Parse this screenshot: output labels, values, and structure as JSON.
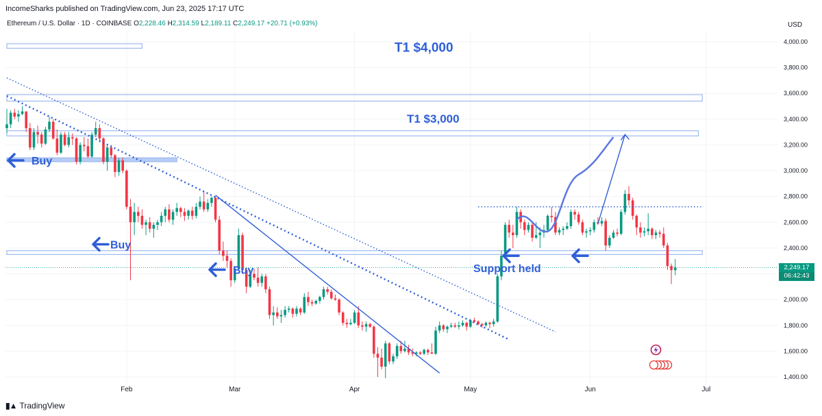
{
  "header": {
    "published": "IncomeSharks published on TradingView.com, Jun 23, 2025 17:17 UTC",
    "symbol": "Ethereum / U.S. Dollar · 1D · COINBASE",
    "o_label": "O",
    "o": "2,228.46",
    "h_label": "H",
    "h": "2,314.59",
    "l_label": "L",
    "l": "2,189.11",
    "c_label": "C",
    "c": "2,249.17",
    "change": "+20.71 (+0.93%)"
  },
  "currency": "USD",
  "last_price": {
    "price": "2,249.17",
    "countdown": "06:42:43"
  },
  "footer": {
    "brand": "TradingView"
  },
  "colors": {
    "up": "#089981",
    "down": "#f23645",
    "annotation": "#2f5fd7",
    "zone": "#9db8ef"
  },
  "chart_data": {
    "type": "candlestick",
    "y_ticks": [
      "4,000.00",
      "3,800.00",
      "3,600.00",
      "3,400.00",
      "3,200.00",
      "3,000.00",
      "2,800.00",
      "2,600.00",
      "2,400.00",
      "2,200.00",
      "2,000.00",
      "1,800.00",
      "1,600.00",
      "1,400.00"
    ],
    "y_tick_values": [
      4000,
      3800,
      3600,
      3400,
      3200,
      3000,
      2800,
      2600,
      2400,
      2200,
      2000,
      1800,
      1600,
      1400
    ],
    "x_ticks": [
      {
        "label": "Feb",
        "date": "2025-02-01"
      },
      {
        "label": "Mar",
        "date": "2025-03-01"
      },
      {
        "label": "Apr",
        "date": "2025-04-01"
      },
      {
        "label": "May",
        "date": "2025-05-01"
      },
      {
        "label": "Jun",
        "date": "2025-06-01"
      },
      {
        "label": "Jul",
        "date": "2025-07-01"
      }
    ],
    "date_range": [
      "2025-01-01",
      "2025-06-23"
    ],
    "ylim": [
      1350,
      4120
    ],
    "annotations": {
      "target1": "T1 $4,000",
      "target2": "T1 $3,000",
      "buy1": "Buy",
      "buy2": "Buy",
      "buy3": "Buy",
      "support": "Support held"
    },
    "zones": [
      {
        "low": 3950,
        "high": 3985,
        "from": "2025-01-01",
        "to": "2025-02-05"
      },
      {
        "low": 3540,
        "high": 3590,
        "from": "2025-01-01",
        "to": "2025-06-30"
      },
      {
        "low": 3270,
        "high": 3310,
        "from": "2025-01-01",
        "to": "2025-06-29"
      },
      {
        "low": 2350,
        "high": 2380,
        "from": "2025-01-01",
        "to": "2025-06-30"
      },
      {
        "low": 3070,
        "high": 3100,
        "from": "2025-01-01",
        "to": "2025-02-14"
      }
    ],
    "candles": [
      [
        "2025-01-01",
        3330,
        3480,
        3290,
        3360
      ],
      [
        "2025-01-02",
        3360,
        3470,
        3330,
        3450
      ],
      [
        "2025-01-03",
        3450,
        3480,
        3400,
        3420
      ],
      [
        "2025-01-04",
        3420,
        3470,
        3380,
        3440
      ],
      [
        "2025-01-05",
        3440,
        3500,
        3430,
        3460
      ],
      [
        "2025-01-06",
        3460,
        3460,
        3300,
        3330
      ],
      [
        "2025-01-07",
        3330,
        3370,
        3160,
        3180
      ],
      [
        "2025-01-08",
        3180,
        3330,
        3160,
        3300
      ],
      [
        "2025-01-09",
        3300,
        3350,
        3210,
        3280
      ],
      [
        "2025-01-10",
        3280,
        3300,
        3180,
        3210
      ],
      [
        "2025-01-11",
        3210,
        3340,
        3200,
        3320
      ],
      [
        "2025-01-12",
        3320,
        3420,
        3300,
        3380
      ],
      [
        "2025-01-13",
        3380,
        3400,
        3240,
        3250
      ],
      [
        "2025-01-14",
        3250,
        3320,
        3120,
        3140
      ],
      [
        "2025-01-15",
        3140,
        3300,
        3130,
        3280
      ],
      [
        "2025-01-16",
        3280,
        3300,
        3190,
        3200
      ],
      [
        "2025-01-17",
        3200,
        3300,
        3180,
        3260
      ],
      [
        "2025-01-18",
        3260,
        3290,
        3200,
        3250
      ],
      [
        "2025-01-19",
        3250,
        3260,
        3050,
        3070
      ],
      [
        "2025-01-20",
        3070,
        3220,
        3050,
        3200
      ],
      [
        "2025-01-21",
        3200,
        3260,
        3150,
        3190
      ],
      [
        "2025-01-22",
        3190,
        3250,
        3100,
        3110
      ],
      [
        "2025-01-23",
        3110,
        3300,
        3100,
        3280
      ],
      [
        "2025-01-24",
        3280,
        3380,
        3260,
        3330
      ],
      [
        "2025-01-25",
        3330,
        3360,
        3220,
        3250
      ],
      [
        "2025-01-26",
        3250,
        3260,
        3050,
        3070
      ],
      [
        "2025-01-27",
        3070,
        3200,
        3000,
        3180
      ],
      [
        "2025-01-28",
        3180,
        3200,
        3100,
        3120
      ],
      [
        "2025-01-29",
        3120,
        3130,
        2950,
        2990
      ],
      [
        "2025-01-30",
        2990,
        3100,
        2960,
        3080
      ],
      [
        "2025-01-31",
        3080,
        3100,
        2980,
        3000
      ],
      [
        "2025-02-01",
        3000,
        3010,
        2700,
        2720
      ],
      [
        "2025-02-02",
        2720,
        2780,
        2150,
        2600
      ],
      [
        "2025-02-03",
        2600,
        2750,
        2500,
        2680
      ],
      [
        "2025-02-04",
        2680,
        2720,
        2600,
        2650
      ],
      [
        "2025-02-05",
        2650,
        2700,
        2550,
        2580
      ],
      [
        "2025-02-06",
        2580,
        2620,
        2500,
        2600
      ],
      [
        "2025-02-07",
        2600,
        2640,
        2520,
        2550
      ],
      [
        "2025-02-08",
        2550,
        2600,
        2480,
        2580
      ],
      [
        "2025-02-09",
        2580,
        2620,
        2540,
        2600
      ],
      [
        "2025-02-10",
        2600,
        2680,
        2570,
        2650
      ],
      [
        "2025-02-11",
        2650,
        2720,
        2600,
        2700
      ],
      [
        "2025-02-12",
        2700,
        2740,
        2600,
        2620
      ],
      [
        "2025-02-13",
        2620,
        2700,
        2580,
        2680
      ],
      [
        "2025-02-14",
        2680,
        2750,
        2650,
        2710
      ],
      [
        "2025-02-15",
        2710,
        2720,
        2640,
        2680
      ],
      [
        "2025-02-16",
        2680,
        2710,
        2610,
        2650
      ],
      [
        "2025-02-17",
        2650,
        2700,
        2620,
        2690
      ],
      [
        "2025-02-18",
        2690,
        2720,
        2620,
        2650
      ],
      [
        "2025-02-19",
        2650,
        2750,
        2630,
        2720
      ],
      [
        "2025-02-20",
        2720,
        2800,
        2700,
        2760
      ],
      [
        "2025-02-21",
        2760,
        2840,
        2680,
        2700
      ],
      [
        "2025-02-22",
        2700,
        2780,
        2680,
        2750
      ],
      [
        "2025-02-23",
        2750,
        2800,
        2720,
        2790
      ],
      [
        "2025-02-24",
        2790,
        2800,
        2600,
        2620
      ],
      [
        "2025-02-25",
        2620,
        2650,
        2350,
        2380
      ],
      [
        "2025-02-26",
        2380,
        2450,
        2300,
        2340
      ],
      [
        "2025-02-27",
        2340,
        2380,
        2250,
        2300
      ],
      [
        "2025-02-28",
        2300,
        2320,
        2100,
        2150
      ],
      [
        "2025-03-01",
        2150,
        2250,
        2130,
        2240
      ],
      [
        "2025-03-02",
        2240,
        2550,
        2230,
        2500
      ],
      [
        "2025-03-03",
        2500,
        2520,
        2200,
        2230
      ],
      [
        "2025-03-04",
        2230,
        2250,
        2050,
        2100
      ],
      [
        "2025-03-05",
        2100,
        2230,
        2090,
        2200
      ],
      [
        "2025-03-06",
        2200,
        2240,
        2150,
        2170
      ],
      [
        "2025-03-07",
        2170,
        2250,
        2100,
        2130
      ],
      [
        "2025-03-08",
        2130,
        2200,
        2100,
        2180
      ],
      [
        "2025-03-09",
        2180,
        2200,
        2050,
        2080
      ],
      [
        "2025-03-10",
        2080,
        2100,
        1850,
        1880
      ],
      [
        "2025-03-11",
        1880,
        1950,
        1800,
        1900
      ],
      [
        "2025-03-12",
        1900,
        1940,
        1850,
        1870
      ],
      [
        "2025-03-13",
        1870,
        1920,
        1820,
        1880
      ],
      [
        "2025-03-14",
        1880,
        1950,
        1860,
        1920
      ],
      [
        "2025-03-15",
        1920,
        1950,
        1900,
        1930
      ],
      [
        "2025-03-16",
        1930,
        1940,
        1860,
        1890
      ],
      [
        "2025-03-17",
        1890,
        1950,
        1870,
        1930
      ],
      [
        "2025-03-18",
        1930,
        1940,
        1880,
        1900
      ],
      [
        "2025-03-19",
        1900,
        2050,
        1890,
        2020
      ],
      [
        "2025-03-20",
        2020,
        2060,
        1950,
        1980
      ],
      [
        "2025-03-21",
        1980,
        2000,
        1950,
        1970
      ],
      [
        "2025-03-22",
        1970,
        2000,
        1960,
        1990
      ],
      [
        "2025-03-23",
        1990,
        2030,
        1970,
        2020
      ],
      [
        "2025-03-24",
        2020,
        2100,
        2000,
        2080
      ],
      [
        "2025-03-25",
        2080,
        2100,
        2040,
        2060
      ],
      [
        "2025-03-26",
        2060,
        2080,
        2000,
        2010
      ],
      [
        "2025-03-27",
        2010,
        2040,
        1990,
        2000
      ],
      [
        "2025-03-28",
        2000,
        2010,
        1880,
        1900
      ],
      [
        "2025-03-29",
        1900,
        1910,
        1800,
        1820
      ],
      [
        "2025-03-30",
        1820,
        1850,
        1780,
        1810
      ],
      [
        "2025-03-31",
        1810,
        1850,
        1800,
        1820
      ],
      [
        "2025-04-01",
        1820,
        1920,
        1810,
        1900
      ],
      [
        "2025-04-02",
        1900,
        1950,
        1780,
        1800
      ],
      [
        "2025-04-03",
        1800,
        1830,
        1760,
        1790
      ],
      [
        "2025-04-04",
        1790,
        1830,
        1750,
        1810
      ],
      [
        "2025-04-05",
        1810,
        1820,
        1780,
        1790
      ],
      [
        "2025-04-06",
        1790,
        1800,
        1550,
        1580
      ],
      [
        "2025-04-07",
        1580,
        1630,
        1400,
        1550
      ],
      [
        "2025-04-08",
        1550,
        1620,
        1460,
        1480
      ],
      [
        "2025-04-09",
        1480,
        1680,
        1390,
        1660
      ],
      [
        "2025-04-10",
        1660,
        1670,
        1500,
        1520
      ],
      [
        "2025-04-11",
        1520,
        1580,
        1500,
        1560
      ],
      [
        "2025-04-12",
        1560,
        1660,
        1540,
        1640
      ],
      [
        "2025-04-13",
        1640,
        1680,
        1580,
        1600
      ],
      [
        "2025-04-14",
        1600,
        1680,
        1590,
        1620
      ],
      [
        "2025-04-15",
        1620,
        1650,
        1570,
        1590
      ],
      [
        "2025-04-16",
        1590,
        1620,
        1560,
        1580
      ],
      [
        "2025-04-17",
        1580,
        1600,
        1560,
        1590
      ],
      [
        "2025-04-18",
        1590,
        1600,
        1570,
        1580
      ],
      [
        "2025-04-19",
        1580,
        1620,
        1570,
        1610
      ],
      [
        "2025-04-20",
        1610,
        1620,
        1570,
        1590
      ],
      [
        "2025-04-21",
        1590,
        1660,
        1580,
        1580
      ],
      [
        "2025-04-22",
        1580,
        1790,
        1570,
        1760
      ],
      [
        "2025-04-23",
        1760,
        1830,
        1740,
        1800
      ],
      [
        "2025-04-24",
        1800,
        1810,
        1750,
        1770
      ],
      [
        "2025-04-25",
        1770,
        1800,
        1740,
        1790
      ],
      [
        "2025-04-26",
        1790,
        1820,
        1780,
        1800
      ],
      [
        "2025-04-27",
        1800,
        1820,
        1780,
        1790
      ],
      [
        "2025-04-28",
        1790,
        1830,
        1770,
        1800
      ],
      [
        "2025-04-29",
        1800,
        1840,
        1790,
        1820
      ],
      [
        "2025-04-30",
        1820,
        1830,
        1760,
        1790
      ],
      [
        "2025-05-01",
        1790,
        1850,
        1780,
        1840
      ],
      [
        "2025-05-02",
        1840,
        1860,
        1820,
        1830
      ],
      [
        "2025-05-03",
        1830,
        1840,
        1800,
        1810
      ],
      [
        "2025-05-04",
        1810,
        1820,
        1780,
        1800
      ],
      [
        "2025-05-05",
        1800,
        1830,
        1790,
        1820
      ],
      [
        "2025-05-06",
        1820,
        1830,
        1780,
        1810
      ],
      [
        "2025-05-07",
        1810,
        1850,
        1790,
        1830
      ],
      [
        "2025-05-08",
        1830,
        2200,
        1820,
        2180
      ],
      [
        "2025-05-09",
        2180,
        2380,
        2150,
        2340
      ],
      [
        "2025-05-10",
        2340,
        2600,
        2320,
        2580
      ],
      [
        "2025-05-11",
        2580,
        2620,
        2480,
        2520
      ],
      [
        "2025-05-12",
        2520,
        2580,
        2400,
        2500
      ],
      [
        "2025-05-13",
        2500,
        2720,
        2480,
        2680
      ],
      [
        "2025-05-14",
        2680,
        2700,
        2550,
        2600
      ],
      [
        "2025-05-15",
        2600,
        2620,
        2500,
        2540
      ],
      [
        "2025-05-16",
        2540,
        2600,
        2520,
        2580
      ],
      [
        "2025-05-17",
        2580,
        2600,
        2450,
        2480
      ],
      [
        "2025-05-18",
        2480,
        2600,
        2470,
        2500
      ],
      [
        "2025-05-19",
        2500,
        2560,
        2400,
        2520
      ],
      [
        "2025-05-20",
        2520,
        2580,
        2480,
        2540
      ],
      [
        "2025-05-21",
        2540,
        2660,
        2520,
        2650
      ],
      [
        "2025-05-22",
        2650,
        2720,
        2600,
        2640
      ],
      [
        "2025-05-23",
        2640,
        2680,
        2500,
        2520
      ],
      [
        "2025-05-24",
        2520,
        2560,
        2500,
        2540
      ],
      [
        "2025-05-25",
        2540,
        2570,
        2500,
        2550
      ],
      [
        "2025-05-26",
        2550,
        2600,
        2540,
        2570
      ],
      [
        "2025-05-27",
        2570,
        2700,
        2550,
        2680
      ],
      [
        "2025-05-28",
        2680,
        2700,
        2620,
        2660
      ],
      [
        "2025-05-29",
        2660,
        2680,
        2580,
        2600
      ],
      [
        "2025-05-30",
        2600,
        2620,
        2500,
        2520
      ],
      [
        "2025-05-31",
        2520,
        2550,
        2480,
        2530
      ],
      [
        "2025-06-01",
        2530,
        2560,
        2500,
        2540
      ],
      [
        "2025-06-02",
        2540,
        2620,
        2520,
        2600
      ],
      [
        "2025-06-03",
        2600,
        2640,
        2580,
        2590
      ],
      [
        "2025-06-04",
        2590,
        2640,
        2570,
        2610
      ],
      [
        "2025-06-05",
        2610,
        2630,
        2380,
        2420
      ],
      [
        "2025-06-06",
        2420,
        2500,
        2400,
        2480
      ],
      [
        "2025-06-07",
        2480,
        2540,
        2470,
        2520
      ],
      [
        "2025-06-08",
        2520,
        2550,
        2490,
        2510
      ],
      [
        "2025-06-09",
        2510,
        2700,
        2500,
        2680
      ],
      [
        "2025-06-10",
        2680,
        2850,
        2660,
        2820
      ],
      [
        "2025-06-11",
        2820,
        2880,
        2730,
        2770
      ],
      [
        "2025-06-12",
        2770,
        2790,
        2620,
        2650
      ],
      [
        "2025-06-13",
        2650,
        2660,
        2500,
        2560
      ],
      [
        "2025-06-14",
        2560,
        2600,
        2480,
        2520
      ],
      [
        "2025-06-15",
        2520,
        2560,
        2490,
        2530
      ],
      [
        "2025-06-16",
        2530,
        2670,
        2500,
        2550
      ],
      [
        "2025-06-17",
        2550,
        2560,
        2470,
        2500
      ],
      [
        "2025-06-18",
        2500,
        2540,
        2470,
        2520
      ],
      [
        "2025-06-19",
        2520,
        2540,
        2480,
        2510
      ],
      [
        "2025-06-20",
        2510,
        2560,
        2400,
        2420
      ],
      [
        "2025-06-21",
        2420,
        2440,
        2230,
        2260
      ],
      [
        "2025-06-22",
        2260,
        2280,
        2120,
        2228
      ],
      [
        "2025-06-23",
        2228,
        2315,
        2189,
        2249
      ]
    ]
  }
}
